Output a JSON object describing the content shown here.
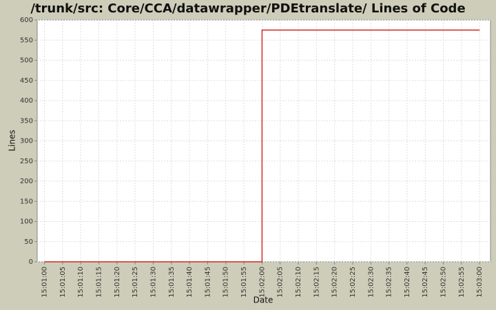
{
  "chart_data": {
    "type": "step-line",
    "title": "/trunk/src: Core/CCA/datawrapper/PDEtranslate/ Lines of Code",
    "x_label": "Date",
    "y_label": "Lines",
    "x": [
      "15:01:00",
      "15:02:00",
      "15:03:00"
    ],
    "series": [
      {
        "name": "Lines of Code",
        "color": "#cc0000",
        "values": [
          0,
          575,
          575
        ]
      }
    ],
    "xlim": [
      "15:00:58",
      "15:03:03"
    ],
    "xticks": [
      "15:01:00",
      "15:01:05",
      "15:01:10",
      "15:01:15",
      "15:01:20",
      "15:01:25",
      "15:01:30",
      "15:01:35",
      "15:01:40",
      "15:01:45",
      "15:01:50",
      "15:01:55",
      "15:02:00",
      "15:02:05",
      "15:02:10",
      "15:02:15",
      "15:02:20",
      "15:02:25",
      "15:02:30",
      "15:02:35",
      "15:02:40",
      "15:02:45",
      "15:02:50",
      "15:02:55",
      "15:03:00"
    ],
    "ylim": [
      0,
      600
    ],
    "yticks": [
      0,
      50,
      100,
      150,
      200,
      250,
      300,
      350,
      400,
      450,
      500,
      550,
      600
    ],
    "grid": true
  }
}
